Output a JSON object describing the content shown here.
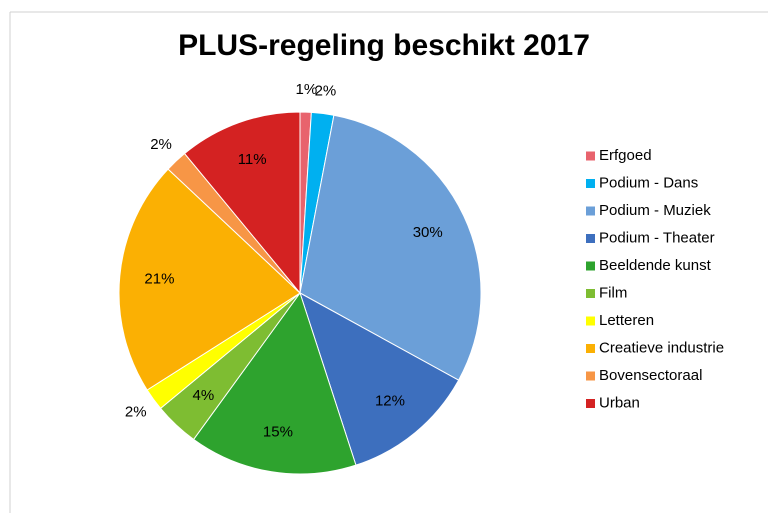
{
  "chart_data": {
    "type": "pie",
    "title": "PLUS-regeling beschikt 2017",
    "categories": [
      "Erfgoed",
      "Podium - Dans",
      "Podium - Muziek",
      "Podium - Theater",
      "Beeldende kunst",
      "Film",
      "Letteren",
      "Creatieve industrie",
      "Bovensectoraal",
      "Urban"
    ],
    "values": [
      1,
      2,
      30,
      12,
      15,
      4,
      2,
      21,
      2,
      11
    ],
    "value_labels": [
      "1%",
      "2%",
      "30%",
      "12%",
      "15%",
      "4%",
      "2%",
      "21%",
      "2%",
      "11%"
    ],
    "colors": [
      "#e8636d",
      "#00b0f0",
      "#6b9fd8",
      "#3d6fbe",
      "#2ea32e",
      "#7ebd32",
      "#ffff00",
      "#fbb003",
      "#f79646",
      "#d42222"
    ],
    "legend": "right"
  }
}
